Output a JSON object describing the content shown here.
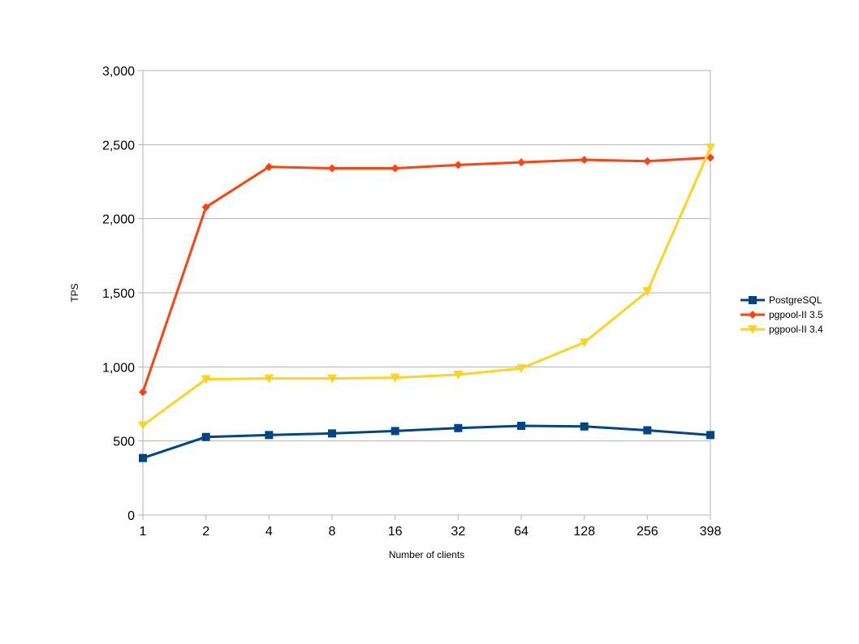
{
  "chart_data": {
    "type": "line",
    "title": "",
    "xlabel": "Number of clients",
    "ylabel": "TPS",
    "categories": [
      "1",
      "2",
      "4",
      "8",
      "16",
      "32",
      "64",
      "128",
      "256",
      "398"
    ],
    "ylim": [
      0,
      3000
    ],
    "yticks": [
      0,
      500,
      1000,
      1500,
      2000,
      2500,
      3000
    ],
    "ytick_labels": [
      "0",
      "500",
      "1,000",
      "1,500",
      "2,000",
      "2,500",
      "3,000"
    ],
    "grid": "horizontal",
    "legend_position": "right",
    "series": [
      {
        "name": "PostgreSQL",
        "color": "#004586",
        "marker": "square",
        "values": [
          385,
          527,
          540,
          551,
          567,
          587,
          602,
          598,
          572,
          540
        ]
      },
      {
        "name": "pgpool-II 3.5",
        "color": "#ff420e",
        "marker": "diamond",
        "values": [
          830,
          2078,
          2350,
          2340,
          2340,
          2363,
          2381,
          2398,
          2388,
          2412
        ]
      },
      {
        "name": "pgpool-II 3.4",
        "color": "#ffd320",
        "marker": "triangle-down",
        "values": [
          605,
          917,
          922,
          922,
          927,
          947,
          990,
          1165,
          1510,
          2480
        ]
      }
    ]
  }
}
